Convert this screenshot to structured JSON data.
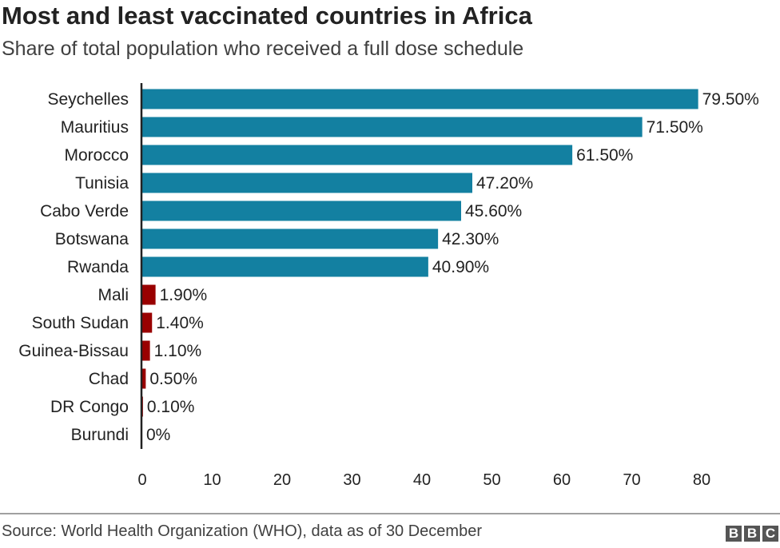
{
  "header": {
    "title": "Most and least vaccinated countries in Africa",
    "subtitle": "Share of total population who received a full dose schedule"
  },
  "footer": {
    "source": "Source: World Health Organization (WHO), data as of 30 December",
    "logo": "BBC"
  },
  "chart_data": {
    "type": "bar",
    "orientation": "horizontal",
    "title": "Most and least vaccinated countries in Africa",
    "subtitle": "Share of total population who received a full dose schedule",
    "categories": [
      "Seychelles",
      "Mauritius",
      "Morocco",
      "Tunisia",
      "Cabo Verde",
      "Botswana",
      "Rwanda",
      "Mali",
      "South Sudan",
      "Guinea-Bissau",
      "Chad",
      "DR Congo",
      "Burundi"
    ],
    "values": [
      79.5,
      71.5,
      61.5,
      47.2,
      45.6,
      42.3,
      40.9,
      1.9,
      1.4,
      1.1,
      0.5,
      0.1,
      0
    ],
    "data_labels": [
      "79.50%",
      "71.50%",
      "61.50%",
      "47.20%",
      "45.60%",
      "42.30%",
      "40.90%",
      "1.90%",
      "1.40%",
      "1.10%",
      "0.50%",
      "0.10%",
      "0%"
    ],
    "groups": [
      "most",
      "most",
      "most",
      "most",
      "most",
      "most",
      "most",
      "least",
      "least",
      "least",
      "least",
      "least",
      "least"
    ],
    "colors": {
      "most": "#1380A1",
      "least": "#990000"
    },
    "xticks": [
      0,
      10,
      20,
      30,
      40,
      50,
      60,
      70,
      80
    ],
    "xlim": [
      0,
      80
    ],
    "xlabel": "",
    "ylabel": "",
    "grid": false
  }
}
